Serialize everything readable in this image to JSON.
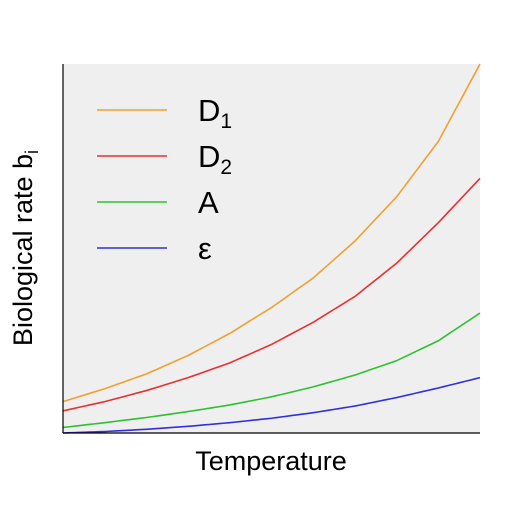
{
  "chart_data": {
    "type": "line",
    "xlabel": "Temperature",
    "ylabel": "Biological rate b",
    "ylabel_subscript": "i",
    "x_ticks_shown": false,
    "y_ticks_shown": false,
    "grid": false,
    "legend_placement": "top-left",
    "background": "#efefef",
    "xlim": [
      0,
      1
    ],
    "ylim": [
      0,
      1
    ],
    "series": [
      {
        "name": "D",
        "subscript": "1",
        "color": "#f0a030",
        "x": [
          0,
          0.1,
          0.2,
          0.3,
          0.4,
          0.5,
          0.6,
          0.7,
          0.8,
          0.9,
          1.0
        ],
        "y": [
          0.085,
          0.12,
          0.16,
          0.21,
          0.27,
          0.34,
          0.42,
          0.52,
          0.64,
          0.79,
          1.0
        ]
      },
      {
        "name": "D",
        "subscript": "2",
        "color": "#e83030",
        "x": [
          0,
          0.1,
          0.2,
          0.3,
          0.4,
          0.5,
          0.6,
          0.7,
          0.8,
          0.9,
          1.0
        ],
        "y": [
          0.06,
          0.085,
          0.115,
          0.15,
          0.19,
          0.24,
          0.3,
          0.37,
          0.46,
          0.57,
          0.69
        ]
      },
      {
        "name": "A",
        "subscript": "",
        "color": "#30c030",
        "x": [
          0,
          0.1,
          0.2,
          0.3,
          0.4,
          0.5,
          0.6,
          0.7,
          0.8,
          0.9,
          1.0
        ],
        "y": [
          0.015,
          0.028,
          0.042,
          0.058,
          0.076,
          0.098,
          0.125,
          0.157,
          0.196,
          0.25,
          0.325
        ]
      },
      {
        "name": "ε",
        "subscript": "",
        "color": "#3030e0",
        "x": [
          0,
          0.1,
          0.2,
          0.3,
          0.4,
          0.5,
          0.6,
          0.7,
          0.8,
          0.9,
          1.0
        ],
        "y": [
          0.0,
          0.004,
          0.01,
          0.018,
          0.028,
          0.04,
          0.055,
          0.073,
          0.096,
          0.122,
          0.15
        ]
      }
    ]
  }
}
